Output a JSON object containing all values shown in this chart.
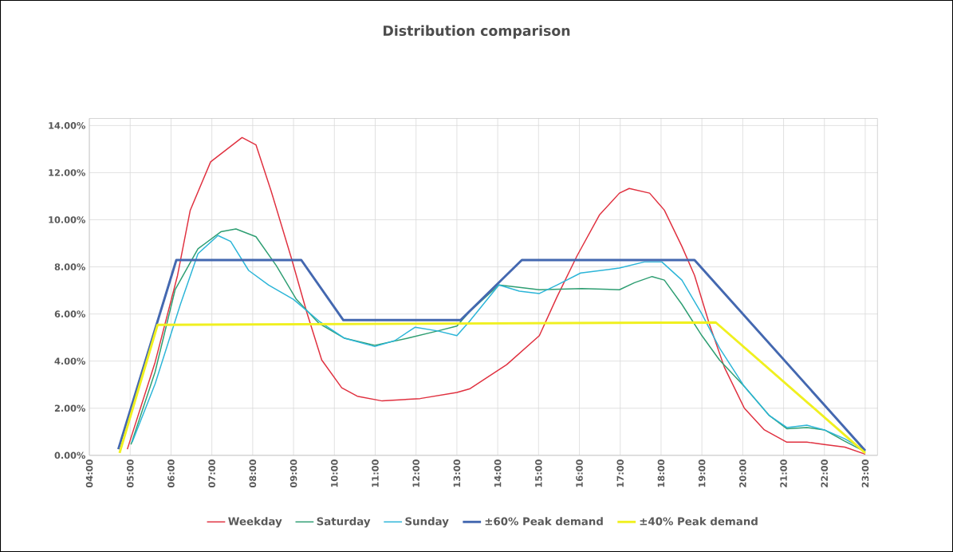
{
  "chart_data": {
    "type": "line",
    "title": "Distribution comparison",
    "xlim": [
      4,
      23.3
    ],
    "ylim": [
      0,
      14.3
    ],
    "xticks": [
      {
        "value": 4,
        "label": "04:00"
      },
      {
        "value": 5,
        "label": "05:00"
      },
      {
        "value": 6,
        "label": "06:00"
      },
      {
        "value": 7,
        "label": "07:00"
      },
      {
        "value": 8,
        "label": "08:00"
      },
      {
        "value": 9,
        "label": "09:00"
      },
      {
        "value": 10,
        "label": "10:00"
      },
      {
        "value": 11,
        "label": "11:00"
      },
      {
        "value": 12,
        "label": "12:00"
      },
      {
        "value": 13,
        "label": "13:00"
      },
      {
        "value": 14,
        "label": "14:00"
      },
      {
        "value": 15,
        "label": "15:00"
      },
      {
        "value": 16,
        "label": "16:00"
      },
      {
        "value": 17,
        "label": "17:00"
      },
      {
        "value": 18,
        "label": "18:00"
      },
      {
        "value": 19,
        "label": "19:00"
      },
      {
        "value": 20,
        "label": "20:00"
      },
      {
        "value": 21,
        "label": "21:00"
      },
      {
        "value": 22,
        "label": "22:00"
      },
      {
        "value": 23,
        "label": "23:00"
      }
    ],
    "yticks": [
      {
        "value": 0,
        "label": "0.00%"
      },
      {
        "value": 2,
        "label": "2.00%"
      },
      {
        "value": 4,
        "label": "4.00%"
      },
      {
        "value": 6,
        "label": "6.00%"
      },
      {
        "value": 8,
        "label": "8.00%"
      },
      {
        "value": 10,
        "label": "10.00%"
      },
      {
        "value": 12,
        "label": "12.00%"
      },
      {
        "value": 14,
        "label": "14.00%"
      }
    ],
    "grid": true,
    "legend": "bottom",
    "series": [
      {
        "name": "Weekday",
        "color": "#e0303f",
        "x": [
          4.93,
          5.61,
          6.16,
          6.47,
          6.97,
          7.74,
          8.08,
          8.45,
          8.95,
          9.32,
          9.69,
          10.18,
          10.56,
          11.17,
          12.1,
          13.0,
          13.31,
          14.22,
          15.02,
          15.45,
          15.94,
          16.49,
          16.98,
          17.22,
          17.72,
          18.08,
          18.51,
          18.82,
          19.18,
          19.55,
          20.04,
          20.53,
          21.08,
          21.57,
          22.0,
          22.5,
          23.0
        ],
        "values": [
          0.26,
          3.95,
          7.64,
          10.4,
          12.46,
          13.49,
          13.18,
          11.23,
          8.36,
          6.1,
          4.05,
          2.87,
          2.51,
          2.31,
          2.41,
          2.67,
          2.82,
          3.85,
          5.08,
          6.72,
          8.46,
          10.2,
          11.13,
          11.33,
          11.13,
          10.41,
          8.87,
          7.64,
          5.59,
          3.74,
          2.0,
          1.08,
          0.56,
          0.56,
          0.46,
          0.35,
          0.05
        ]
      },
      {
        "name": "Saturday",
        "color": "#2e9e72",
        "x": [
          5.02,
          5.61,
          6.1,
          6.66,
          7.22,
          7.59,
          8.08,
          8.58,
          9.07,
          9.63,
          10.25,
          10.99,
          11.79,
          12.53,
          13.0,
          13.31,
          14.03,
          14.53,
          15.02,
          16.06,
          16.98,
          17.35,
          17.78,
          18.08,
          18.51,
          19.0,
          19.43,
          20.04,
          20.65,
          21.08,
          21.57,
          22.0,
          22.5,
          23.0
        ],
        "values": [
          0.46,
          3.54,
          7.03,
          8.77,
          9.49,
          9.61,
          9.28,
          8.05,
          6.62,
          5.59,
          4.97,
          4.67,
          4.97,
          5.28,
          5.49,
          6.1,
          7.23,
          7.13,
          7.03,
          7.08,
          7.03,
          7.33,
          7.59,
          7.44,
          6.41,
          5.08,
          4.05,
          2.92,
          1.69,
          1.13,
          1.18,
          1.08,
          0.6,
          0.15
        ]
      },
      {
        "name": "Sunday",
        "color": "#2bb5d8",
        "x": [
          5.05,
          5.61,
          6.23,
          6.66,
          7.15,
          7.46,
          7.9,
          8.39,
          9.0,
          9.63,
          10.25,
          10.99,
          11.48,
          11.98,
          12.53,
          13.0,
          13.31,
          14.03,
          14.53,
          15.02,
          15.45,
          16.03,
          16.98,
          17.59,
          18.02,
          18.51,
          19.0,
          19.43,
          20.04,
          20.65,
          21.08,
          21.57,
          22.0,
          22.5,
          23.0
        ],
        "values": [
          0.56,
          3.03,
          6.41,
          8.56,
          9.33,
          9.08,
          7.85,
          7.23,
          6.62,
          5.69,
          4.97,
          4.62,
          4.87,
          5.44,
          5.28,
          5.08,
          5.69,
          7.23,
          6.97,
          6.87,
          7.23,
          7.74,
          7.95,
          8.21,
          8.21,
          7.44,
          6.0,
          4.56,
          2.92,
          1.69,
          1.18,
          1.28,
          1.08,
          0.7,
          0.2
        ]
      },
      {
        "name": "±60% Peak demand",
        "color": "#4468b0",
        "x": [
          4.71,
          6.13,
          9.19,
          10.22,
          13.09,
          14.59,
          18.82,
          23.0
        ],
        "values": [
          0.26,
          8.29,
          8.29,
          5.74,
          5.74,
          8.29,
          8.29,
          0.2
        ]
      },
      {
        "name": "±40% Peak demand",
        "color": "#f0f020",
        "x": [
          4.74,
          5.67,
          19.34,
          23.0
        ],
        "values": [
          0.1,
          5.54,
          5.64,
          0.1
        ]
      }
    ]
  }
}
